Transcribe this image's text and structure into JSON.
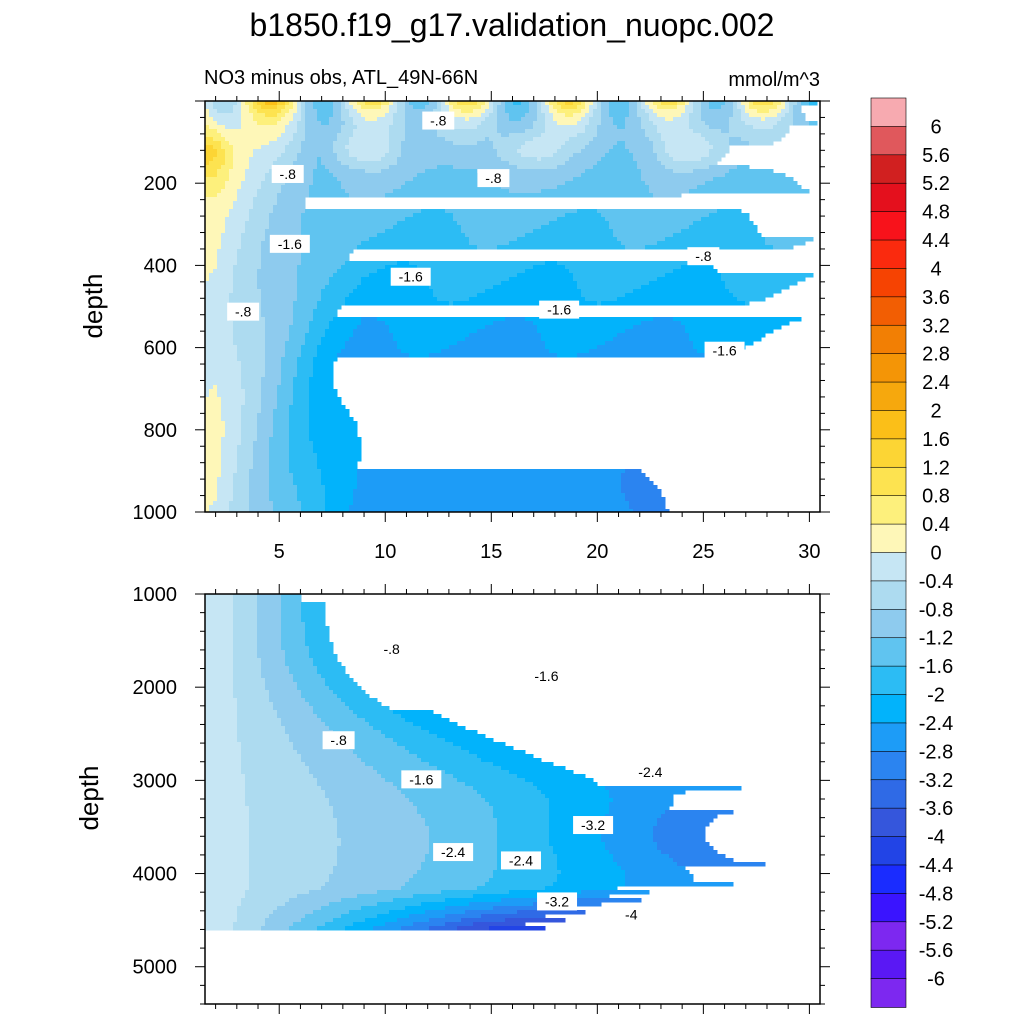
{
  "figure": {
    "title": "b1850.f19_g17.validation_nuopc.002",
    "subtitle_left": "NO3 minus obs, ATL_49N-66N",
    "subtitle_right": "mmol/m^3"
  },
  "colors": {
    "neg": [
      "#7d28f0",
      "#3a14ff",
      "#1a2cff",
      "#2244e6",
      "#3556dc",
      "#2f6ae6",
      "#2b84f0",
      "#1d9cf7",
      "#02b3fb",
      "#2cbcf4",
      "#60c4f0",
      "#8ecbee",
      "#addbf0",
      "#c6e6f4"
    ],
    "pos": [
      "#fef7b8",
      "#fdf07c",
      "#fde350",
      "#fcd534",
      "#fbbf18",
      "#f6a80d",
      "#f49506",
      "#f27f04",
      "#f25e03",
      "#f64302",
      "#fa2a0e",
      "#f8121b",
      "#e4101d",
      "#d12020",
      "#e0585c",
      "#f7aab0"
    ],
    "line": "#333333",
    "frame": "#000000",
    "missing": "#ffffff"
  },
  "chart_data": [
    {
      "type": "contour",
      "panel": "top",
      "xlabel": "",
      "ylabel": "depth",
      "xlim": [
        1.5,
        30.5
      ],
      "ylim": [
        1000,
        0
      ],
      "xticks": [
        5,
        10,
        15,
        20,
        25,
        30
      ],
      "xtick_labels": [
        "5",
        "10",
        "15",
        "20",
        "25",
        "30"
      ],
      "yticks": [
        200,
        400,
        600,
        800,
        1000
      ],
      "ytick_labels": [
        "200",
        "400",
        "600",
        "800",
        "1000"
      ],
      "contour_labels": [
        {
          "text": "-.8",
          "x": 12.5,
          "y": 50
        },
        {
          "text": "-.8",
          "x": 5.4,
          "y": 180
        },
        {
          "text": "-.8",
          "x": 15.1,
          "y": 190
        },
        {
          "text": "-.8",
          "x": 25,
          "y": 380
        },
        {
          "text": "-1.6",
          "x": 5.5,
          "y": 350
        },
        {
          "text": "-1.6",
          "x": 11.2,
          "y": 430
        },
        {
          "text": "-1.6",
          "x": 18.2,
          "y": 510
        },
        {
          "text": "-1.6",
          "x": 26,
          "y": 610
        },
        {
          "text": "-.8",
          "x": 3.3,
          "y": 515
        }
      ]
    },
    {
      "type": "contour",
      "panel": "bottom",
      "xlabel": "",
      "ylabel": "depth",
      "xlim": [
        1.5,
        30.5
      ],
      "ylim": [
        5400,
        1000
      ],
      "yticks": [
        1000,
        2000,
        3000,
        4000,
        5000
      ],
      "ytick_labels": [
        "1000",
        "2000",
        "3000",
        "4000",
        "5000"
      ],
      "data_bottom_depth": 4620,
      "contour_labels": [
        {
          "text": "-.8",
          "x": 10.3,
          "y": 1600
        },
        {
          "text": "-.8",
          "x": 7.8,
          "y": 2580
        },
        {
          "text": "-1.6",
          "x": 17.6,
          "y": 1890
        },
        {
          "text": "-1.6",
          "x": 11.7,
          "y": 3000
        },
        {
          "text": "-2.4",
          "x": 22.5,
          "y": 2920
        },
        {
          "text": "-3.2",
          "x": 19.8,
          "y": 3490
        },
        {
          "text": "-2.4",
          "x": 13.2,
          "y": 3780
        },
        {
          "text": "-2.4",
          "x": 16.4,
          "y": 3870
        },
        {
          "text": "-3.2",
          "x": 18.1,
          "y": 4310
        },
        {
          "text": "-4",
          "x": 21.6,
          "y": 4450
        }
      ]
    }
  ],
  "colorbar": {
    "labels": [
      "6",
      "5.6",
      "5.2",
      "4.8",
      "4.4",
      "4",
      "3.6",
      "3.2",
      "2.8",
      "2.4",
      "2",
      "1.6",
      "1.2",
      "0.8",
      "0.4",
      "0",
      "-0.4",
      "-0.8",
      "-1.2",
      "-1.6",
      "-2",
      "-2.4",
      "-2.8",
      "-3.2",
      "-3.6",
      "-4",
      "-4.4",
      "-4.8",
      "-5.2",
      "-5.6",
      "-6"
    ]
  }
}
